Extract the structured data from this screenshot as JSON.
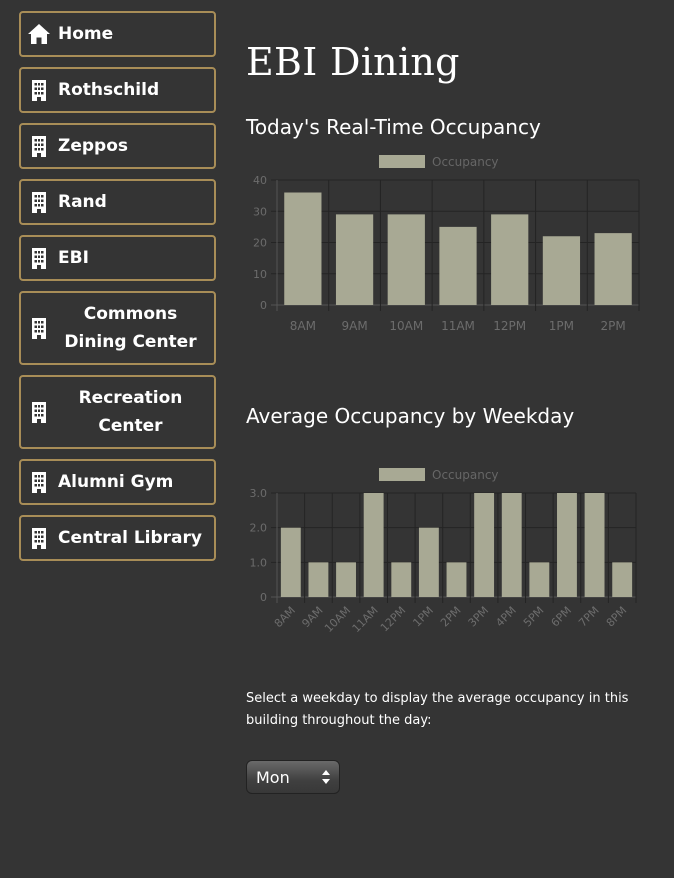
{
  "sidebar": {
    "items": [
      {
        "label": "Home",
        "icon": "home-icon",
        "lines": 1
      },
      {
        "label": "Rothschild",
        "icon": "building-icon",
        "lines": 1
      },
      {
        "label": "Zeppos",
        "icon": "building-icon",
        "lines": 1
      },
      {
        "label": "Rand",
        "icon": "building-icon",
        "lines": 1
      },
      {
        "label": "EBI",
        "icon": "building-icon",
        "lines": 1
      },
      {
        "label": "Commons Dining Center",
        "icon": "building-icon",
        "lines": 2
      },
      {
        "label": "Recreation Center",
        "icon": "building-icon",
        "lines": 2
      },
      {
        "label": "Alumni Gym",
        "icon": "building-icon",
        "lines": 1
      },
      {
        "label": "Central Library",
        "icon": "building-icon",
        "lines": 1
      }
    ],
    "border_color": "#a88d57"
  },
  "page": {
    "title": "EBI Dining",
    "background": "#343434"
  },
  "realtime": {
    "title": "Today's Real-Time Occupancy"
  },
  "weekday_avg": {
    "title": "Average Occupancy by Weekday"
  },
  "instructions": "Select a weekday to display the average occupancy in this building throughout the day:",
  "weekday_select": {
    "value": "Mon"
  },
  "chart_data": [
    {
      "type": "bar",
      "title": "Today's Real-Time Occupancy",
      "categories": [
        "8AM",
        "9AM",
        "10AM",
        "11AM",
        "12PM",
        "1PM",
        "2PM"
      ],
      "series": [
        {
          "name": "Occupancy",
          "values": [
            36,
            29,
            29,
            25,
            29,
            22,
            23
          ]
        }
      ],
      "ylim": [
        0,
        40
      ],
      "yticks": [
        "0",
        "10",
        "20",
        "30",
        "40"
      ],
      "grid": true,
      "legend": "top",
      "bar_color": "#a8a994"
    },
    {
      "type": "bar",
      "title": "Average Occupancy by Weekday",
      "categories": [
        "8AM",
        "9AM",
        "10AM",
        "11AM",
        "12PM",
        "1PM",
        "2PM",
        "3PM",
        "4PM",
        "5PM",
        "6PM",
        "7PM",
        "8PM"
      ],
      "series": [
        {
          "name": "Occupancy",
          "values": [
            2,
            1,
            1,
            3,
            1,
            2,
            1,
            3,
            3,
            1,
            3,
            3,
            1
          ]
        }
      ],
      "ylim": [
        0,
        3
      ],
      "yticks": [
        "0",
        "1.0",
        "2.0",
        "3.0"
      ],
      "grid": true,
      "legend": "top",
      "bar_color": "#a8a994"
    }
  ]
}
